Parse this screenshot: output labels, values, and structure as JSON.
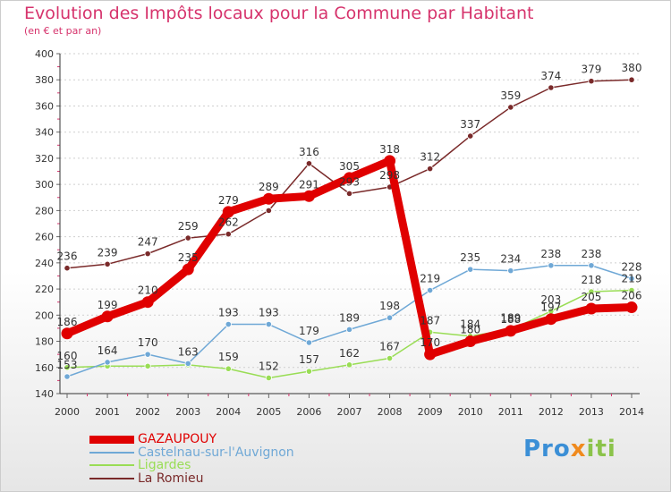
{
  "header": {
    "title": "Evolution des Impôts locaux pour la Commune par Habitant",
    "subtitle": "(en € et par an)"
  },
  "brand": {
    "part1": "Pro",
    "part2": "x",
    "part3": "iti"
  },
  "colors": {
    "title": "#d6336c",
    "GAZAUPOUY": "#e00000",
    "Castelnau-sur-l'Auvignon": "#6fa8d6",
    "Ligardes": "#99dd55",
    "La Romieu": "#7a2a2a"
  },
  "chart_data": {
    "type": "line",
    "title": "Evolution des Impôts locaux pour la Commune par Habitant",
    "subtitle": "(en € et par an)",
    "x": [
      "2000",
      "2001",
      "2002",
      "2003",
      "2004",
      "2005",
      "2006",
      "2007",
      "2008",
      "2009",
      "2010",
      "2011",
      "2012",
      "2013",
      "2014"
    ],
    "ylim": [
      140,
      400
    ],
    "yticks": [
      140,
      160,
      180,
      200,
      220,
      240,
      260,
      280,
      300,
      320,
      340,
      360,
      380,
      400
    ],
    "grid": "horizontal dotted",
    "legend_position": "bottom-left",
    "series": [
      {
        "name": "La Romieu",
        "color": "#7a2a2a",
        "width": 1.5,
        "values": [
          236,
          239,
          247,
          259,
          262,
          280,
          316,
          293,
          298,
          312,
          337,
          359,
          374,
          379,
          380
        ],
        "labels": [
          "236",
          "239",
          "247",
          "259",
          "262",
          "",
          "316",
          "293",
          "298",
          "312",
          "337",
          "359",
          "374",
          "379",
          "380"
        ]
      },
      {
        "name": "Ligardes",
        "color": "#99dd55",
        "width": 1.5,
        "values": [
          160,
          161,
          161,
          162,
          159,
          152,
          157,
          162,
          167,
          187,
          184,
          189,
          203,
          218,
          219
        ],
        "labels": [
          "160",
          "",
          "",
          "",
          "159",
          "152",
          "157",
          "162",
          "167",
          "187",
          "184",
          "189",
          "203",
          "218",
          "219"
        ]
      },
      {
        "name": "Castelnau-sur-l'Auvignon",
        "color": "#6fa8d6",
        "width": 1.5,
        "values": [
          153,
          164,
          170,
          163,
          193,
          193,
          179,
          189,
          198,
          219,
          235,
          234,
          238,
          238,
          228
        ],
        "labels": [
          "153",
          "164",
          "170",
          "163",
          "193",
          "193",
          "179",
          "189",
          "198",
          "219",
          "235",
          "234",
          "238",
          "238",
          "228"
        ]
      },
      {
        "name": "GAZAUPOUY",
        "color": "#e00000",
        "width": 9,
        "values": [
          186,
          199,
          210,
          235,
          279,
          289,
          291,
          305,
          318,
          170,
          180,
          188,
          197,
          205,
          206
        ],
        "labels": [
          "186",
          "199",
          "210",
          "235",
          "279",
          "289",
          "291",
          "305",
          "318",
          "170",
          "180",
          "188",
          "197",
          "205",
          "206"
        ]
      }
    ],
    "legend_order": [
      "GAZAUPOUY",
      "Castelnau-sur-l'Auvignon",
      "Ligardes",
      "La Romieu"
    ]
  }
}
